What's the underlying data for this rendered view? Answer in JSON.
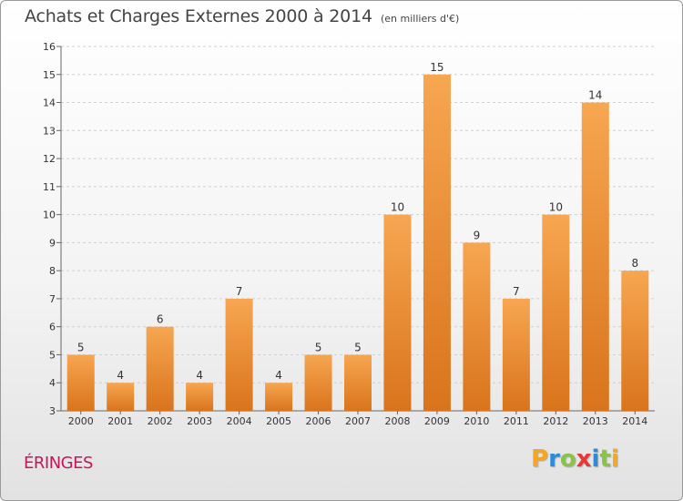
{
  "header": {
    "title": "Achats et Charges Externes 2000 à 2014",
    "subtitle": "(en milliers d'€)"
  },
  "footer": {
    "commune": "ÉRINGES",
    "logo_letters": [
      "P",
      "r",
      "o",
      "x",
      "i",
      "t",
      "i"
    ],
    "logo_colors": [
      "#f5a623",
      "#2e8bd8",
      "#8bc34a",
      "#e53935",
      "#2e8bd8",
      "#8bc34a",
      "#f5a623"
    ]
  },
  "chart_data": {
    "type": "bar",
    "categories": [
      "2000",
      "2001",
      "2002",
      "2003",
      "2004",
      "2005",
      "2006",
      "2007",
      "2008",
      "2009",
      "2010",
      "2011",
      "2012",
      "2013",
      "2014"
    ],
    "values": [
      5,
      4,
      6,
      4,
      7,
      4,
      5,
      5,
      10,
      15,
      9,
      7,
      10,
      14,
      8
    ],
    "value_labels": [
      "5",
      "4",
      "6",
      "4",
      "7",
      "4",
      "5",
      "5",
      "10",
      "15",
      "9",
      "7",
      "10",
      "14",
      "8"
    ],
    "title": "Achats et Charges Externes 2000 à 2014",
    "xlabel": "",
    "ylabel": "",
    "ylim": [
      3,
      16
    ],
    "yticks": [
      3,
      4,
      5,
      6,
      7,
      8,
      9,
      10,
      11,
      12,
      13,
      14,
      15,
      16
    ],
    "grid": "horizontal-dashed",
    "bar_color_light": "#f7a651",
    "bar_color_dark": "#d9741c"
  }
}
